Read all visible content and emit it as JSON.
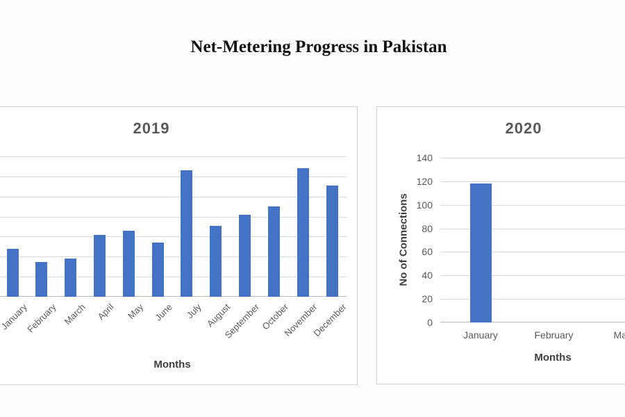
{
  "page": {
    "title": "Net-Metering Progress in Pakistan"
  },
  "colors": {
    "bar": "#4472c4",
    "gridline": "#d9d9d9",
    "axis_line": "#b9b9b9",
    "chart_title": "#595959",
    "tick_label": "#595959",
    "axis_title": "#3f3f3f"
  },
  "chart_data": [
    {
      "type": "bar",
      "title": "2019",
      "xlabel": "Months",
      "ylabel": "",
      "categories": [
        "January",
        "February",
        "March",
        "April",
        "May",
        "June",
        "July",
        "August",
        "September",
        "October",
        "November",
        "December"
      ],
      "values": [
        48,
        35,
        38,
        62,
        66,
        54,
        126,
        71,
        82,
        90,
        128,
        111
      ],
      "ylim": [
        0,
        140
      ],
      "gridline_step": 20,
      "grid": true,
      "legend": "none",
      "note": "y-axis and left edge of plot cut off at left screen edge; January label only partially visible"
    },
    {
      "type": "bar",
      "title": "2020",
      "xlabel": "Months",
      "ylabel": "No of Connections",
      "categories": [
        "January",
        "February",
        "March"
      ],
      "values": [
        118,
        0,
        0
      ],
      "yticks": [
        0,
        20,
        40,
        60,
        80,
        100,
        120,
        140
      ],
      "ylim": [
        0,
        140
      ],
      "gridline_step": 20,
      "grid": true,
      "legend": "none",
      "note": "chart cut off at right screen edge; March label only partially visible"
    }
  ]
}
